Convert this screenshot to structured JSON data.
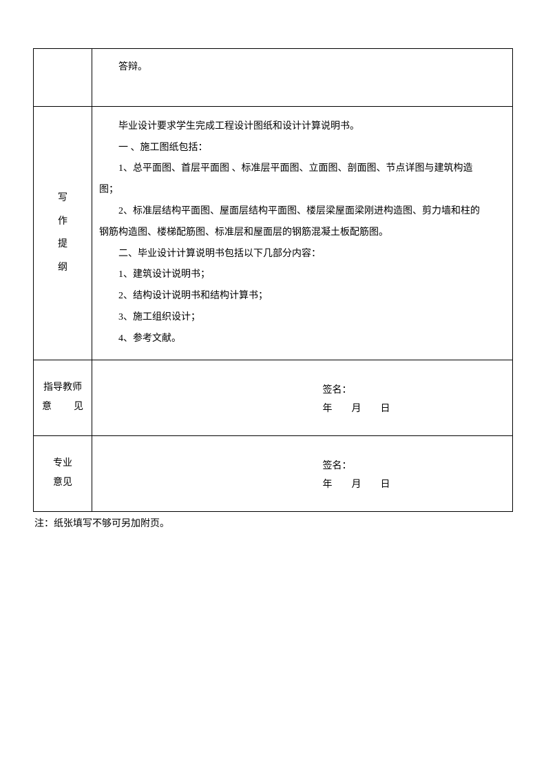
{
  "row1": {
    "content": "答辩。"
  },
  "row2": {
    "label_chars": [
      "写",
      "作",
      "提",
      "纲"
    ],
    "lines": [
      {
        "text": "毕业设计要求学生完成工程设计图纸和设计计算说明书。",
        "indent": true
      },
      {
        "text": "一 、施工图纸包括：",
        "indent": true
      },
      {
        "text": "1、总平面图、首层平面图 、标准层平面图、立面图、剖面图、节点详图与建筑构造",
        "indent": true
      },
      {
        "text": "图；",
        "indent": false,
        "flush": true
      },
      {
        "text": "2、标准层结构平面图、屋面层结构平面图、楼层梁屋面梁刚进构造图、剪力墙和柱的",
        "indent": true
      },
      {
        "text": "钢筋构造图、楼梯配筋图、标准层和屋面层的钢筋混凝土板配筋图。",
        "indent": false,
        "flush": true
      },
      {
        "text": "二、毕业设计计算说明书包括以下几部分内容：",
        "indent": true
      },
      {
        "text": "1、建筑设计说明书；",
        "indent": true
      },
      {
        "text": "2、结构设计说明书和结构计算书；",
        "indent": true
      },
      {
        "text": "3、施工组织设计；",
        "indent": true
      },
      {
        "text": "4、参考文献。",
        "indent": true
      }
    ]
  },
  "row3": {
    "label_line1": "指导教师",
    "label_line2_a": "意",
    "label_line2_b": "见",
    "sign_label": "签名：",
    "date_text": "年　　月　　日"
  },
  "row4": {
    "label_line1": "专业",
    "label_line2": "意见",
    "sign_label": "签名：",
    "date_text": "年　　月　　日"
  },
  "note": "注：纸张填写不够可另加附页。"
}
